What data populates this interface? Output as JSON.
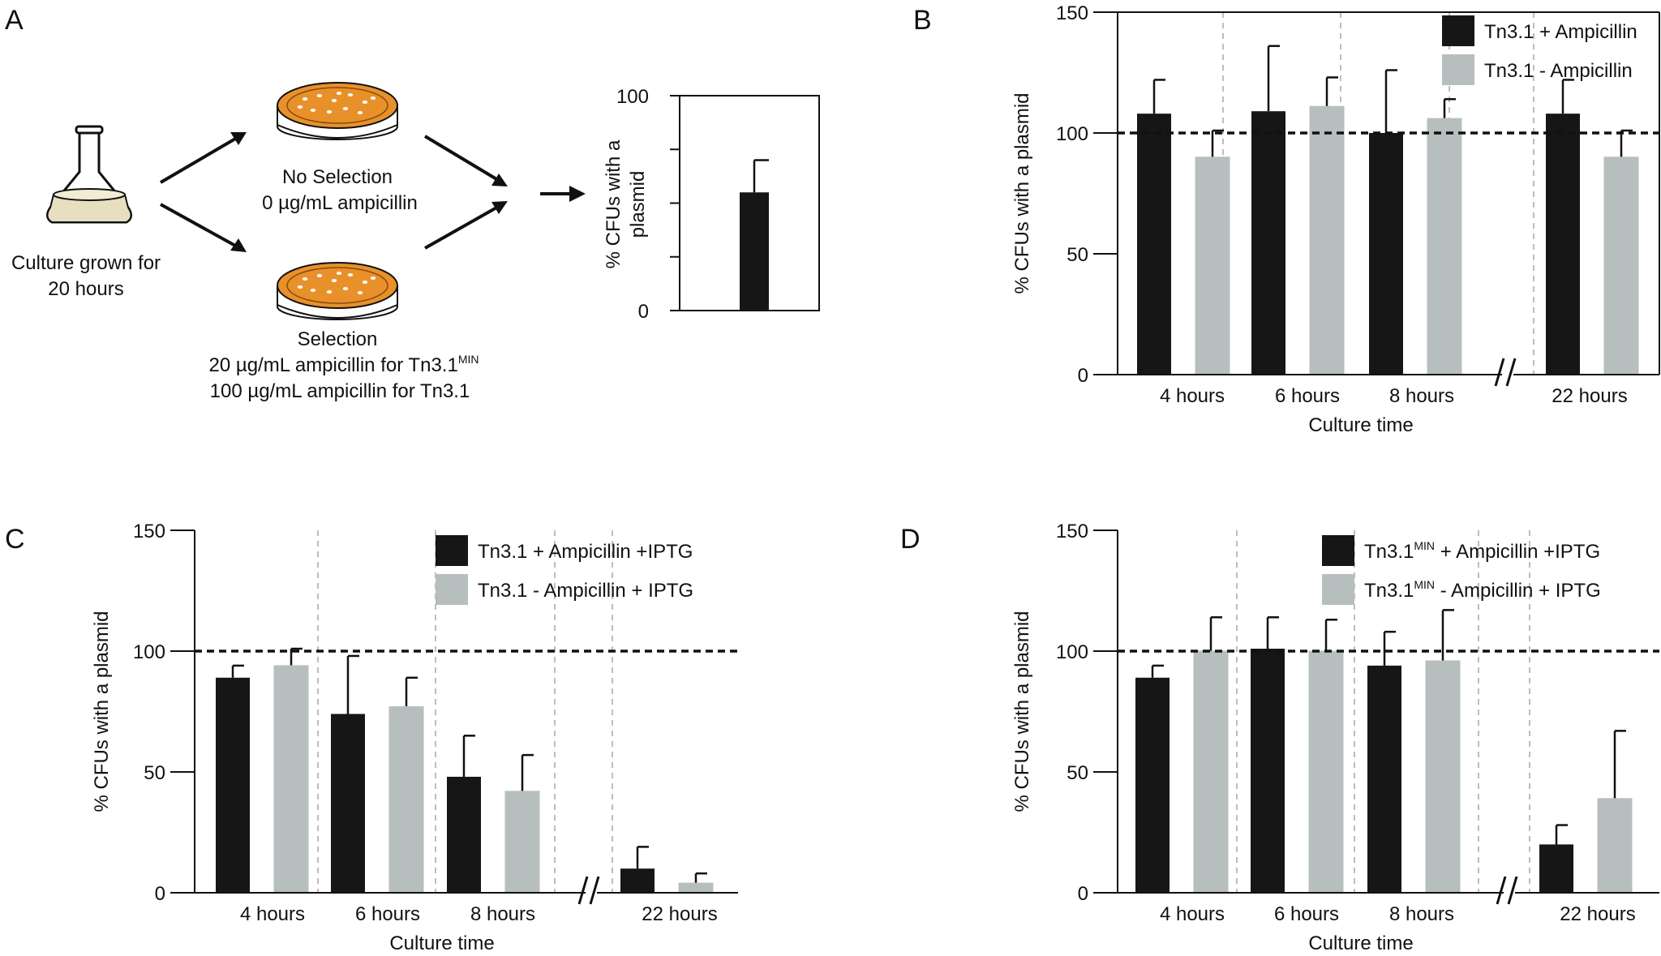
{
  "colors": {
    "dark_bar": "#161616",
    "light_bar": "#b7bfbe",
    "axis": "#111111",
    "separator": "#bdbdbd",
    "agar_plate": "#e8912a",
    "broth": "#e8dfc1"
  },
  "panels": {
    "a": {
      "label": "A",
      "culture_line1": "Culture grown for",
      "culture_line2": "20 hours",
      "no_selection_line1": "No Selection",
      "no_selection_line2": "0 µg/mL ampicillin",
      "selection_line1": "Selection",
      "selection_line2_prefix": "20 µg/mL ampicillin for Tn3.1",
      "selection_line2_sup": "MIN",
      "selection_line3": "100 µg/mL ampicillin for Tn3.1"
    },
    "b": {
      "label": "B"
    },
    "c": {
      "label": "C"
    },
    "d": {
      "label": "D"
    }
  },
  "chart_data": [
    {
      "id": "A-inset",
      "type": "bar",
      "ylabel_line1": "% CFUs with a",
      "ylabel_line2": "plasmid",
      "ylim": [
        0,
        100
      ],
      "yticks": [
        0,
        100
      ],
      "values": [
        55
      ],
      "errors": [
        15
      ]
    },
    {
      "id": "B",
      "type": "bar",
      "xlabel": "Culture time",
      "ylabel": "% CFUs with a plasmid",
      "ylim": [
        0,
        150
      ],
      "yticks": [
        0,
        50,
        100,
        150
      ],
      "reference_line": 100,
      "axis_break_before_last": true,
      "categories": [
        "4 hours",
        "6 hours",
        "8 hours",
        "22 hours"
      ],
      "series": [
        {
          "name": "Tn3.1 + Ampicillin",
          "name_sup": "",
          "name_suffix": "",
          "style": "dark",
          "values": [
            108,
            109,
            100,
            108
          ],
          "errors": [
            14,
            27,
            26,
            14
          ]
        },
        {
          "name": "Tn3.1 - Ampicillin",
          "name_sup": "",
          "name_suffix": "",
          "style": "light",
          "values": [
            90,
            111,
            106,
            90
          ],
          "errors": [
            11,
            12,
            8,
            11
          ]
        }
      ]
    },
    {
      "id": "C",
      "type": "bar",
      "xlabel": "Culture time",
      "ylabel": "% CFUs with a plasmid",
      "ylim": [
        0,
        150
      ],
      "yticks": [
        0,
        50,
        100,
        150
      ],
      "reference_line": 100,
      "axis_break_before_last": true,
      "categories": [
        "4 hours",
        "6 hours",
        "8 hours",
        "22 hours"
      ],
      "series": [
        {
          "name": "Tn3.1",
          "name_sup": "",
          "name_suffix": " + Ampicillin +IPTG",
          "style": "dark",
          "values": [
            89,
            74,
            48,
            10
          ],
          "errors": [
            5,
            24,
            17,
            9
          ]
        },
        {
          "name": "Tn3.1",
          "name_sup": "",
          "name_suffix": " - Ampicillin + IPTG",
          "style": "light",
          "values": [
            94,
            77,
            42,
            4
          ],
          "errors": [
            7,
            12,
            15,
            4
          ]
        }
      ]
    },
    {
      "id": "D",
      "type": "bar",
      "xlabel": "Culture time",
      "ylabel": "% CFUs with a plasmid",
      "ylim": [
        0,
        150
      ],
      "yticks": [
        0,
        50,
        100,
        150
      ],
      "reference_line": 100,
      "axis_break_before_last": true,
      "categories": [
        "4 hours",
        "6 hours",
        "8 hours",
        "22 hours"
      ],
      "series": [
        {
          "name": "Tn3.1",
          "name_sup": "MIN",
          "name_suffix": " + Ampicillin +IPTG",
          "style": "dark",
          "values": [
            89,
            101,
            94,
            20
          ],
          "errors": [
            5,
            13,
            14,
            8
          ]
        },
        {
          "name": "Tn3.1",
          "name_sup": "MIN",
          "name_suffix": " - Ampicillin + IPTG",
          "style": "light",
          "values": [
            100,
            100,
            96,
            39
          ],
          "errors": [
            14,
            13,
            21,
            28
          ]
        }
      ]
    }
  ]
}
